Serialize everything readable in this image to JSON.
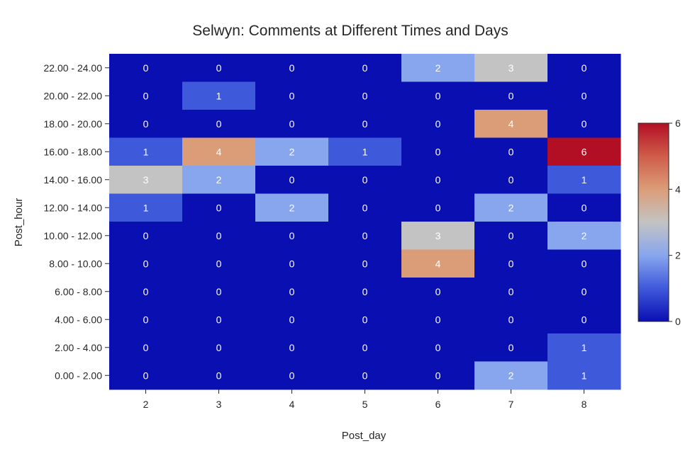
{
  "chart_data": {
    "type": "heatmap",
    "title": "Selwyn: Comments at Different Times and Days",
    "xlabel": "Post_day",
    "ylabel": "Post_hour",
    "x": [
      "2",
      "3",
      "4",
      "5",
      "6",
      "7",
      "8"
    ],
    "y": [
      "22.00 - 24.00",
      "20.00 - 22.00",
      "18.00 - 20.00",
      "16.00 - 18.00",
      "14.00 - 16.00",
      "12.00 - 14.00",
      "10.00 - 12.00",
      "8.00 - 10.00",
      "6.00 - 8.00",
      "4.00 - 6.00",
      "2.00 - 4.00",
      "0.00 - 2.00"
    ],
    "values": [
      [
        0,
        0,
        0,
        0,
        2,
        3,
        0
      ],
      [
        0,
        1,
        0,
        0,
        0,
        0,
        0
      ],
      [
        0,
        0,
        0,
        0,
        0,
        4,
        0
      ],
      [
        1,
        4,
        2,
        1,
        0,
        0,
        6
      ],
      [
        3,
        2,
        0,
        0,
        0,
        0,
        1
      ],
      [
        1,
        0,
        2,
        0,
        0,
        2,
        0
      ],
      [
        0,
        0,
        0,
        0,
        3,
        0,
        2
      ],
      [
        0,
        0,
        0,
        0,
        4,
        0,
        0
      ],
      [
        0,
        0,
        0,
        0,
        0,
        0,
        0
      ],
      [
        0,
        0,
        0,
        0,
        0,
        0,
        0
      ],
      [
        0,
        0,
        0,
        0,
        0,
        0,
        1
      ],
      [
        0,
        0,
        0,
        0,
        0,
        2,
        1
      ]
    ],
    "colorscale": "coolwarm",
    "vmin": 0,
    "vmax": 6,
    "colorbar_ticks": [
      "0",
      "2",
      "4",
      "6"
    ],
    "colors": {
      "0": "#0a0fb2",
      "1": "#3f59db",
      "2": "#88a6ee",
      "3": "#c3c3c3",
      "4": "#db9d78",
      "5": "#cf5d49",
      "6": "#b30f24"
    },
    "grid": false,
    "legend": "colorbar right"
  }
}
